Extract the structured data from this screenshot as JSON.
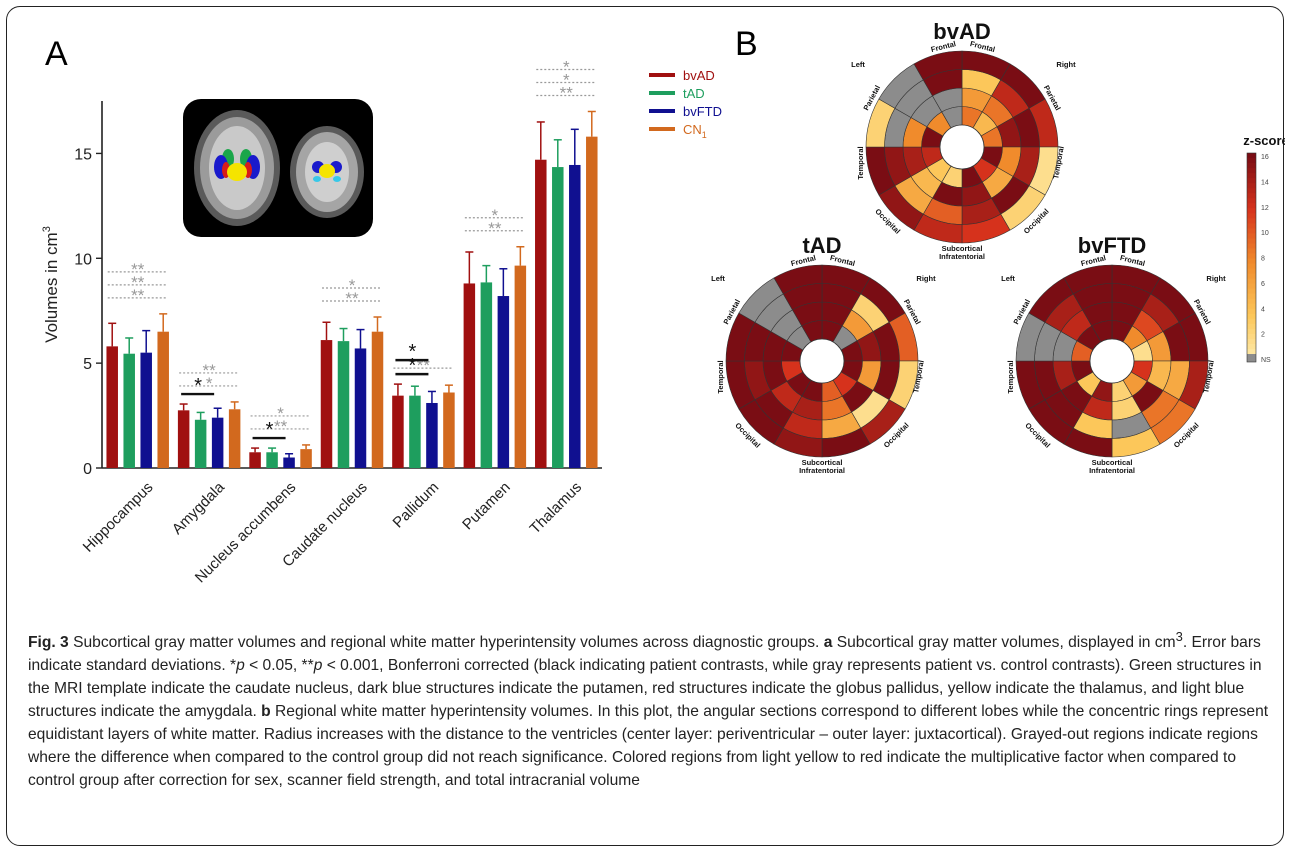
{
  "panel_a": {
    "letter": "A",
    "ylabel": "Volumes in cm",
    "ylabel_sup": "3",
    "legend": [
      {
        "label": "bvAD",
        "color": "#a01010"
      },
      {
        "label": "tAD",
        "color": "#1e9e5e"
      },
      {
        "label": "bvFTD",
        "color": "#101090"
      },
      {
        "label": "CN",
        "sub": "1",
        "color": "#d2691e"
      }
    ]
  },
  "chart_data": [
    {
      "type": "bar",
      "categories": [
        "Hippocampus",
        "Amygdala",
        "Nucleus accumbens",
        "Caudate nucleus",
        "Pallidum",
        "Putamen",
        "Thalamus"
      ],
      "series": [
        {
          "name": "bvAD",
          "color": "#a01010",
          "values": [
            5.8,
            2.75,
            0.75,
            6.1,
            3.45,
            8.8,
            14.7
          ],
          "errors": [
            1.1,
            0.3,
            0.2,
            0.85,
            0.55,
            1.5,
            1.8
          ]
        },
        {
          "name": "tAD",
          "color": "#1e9e5e",
          "values": [
            5.45,
            2.3,
            0.75,
            6.05,
            3.45,
            8.85,
            14.35
          ],
          "errors": [
            0.75,
            0.35,
            0.2,
            0.6,
            0.45,
            0.8,
            1.3
          ]
        },
        {
          "name": "bvFTD",
          "color": "#101090",
          "values": [
            5.5,
            2.4,
            0.5,
            5.7,
            3.1,
            8.2,
            14.45
          ],
          "errors": [
            1.05,
            0.45,
            0.18,
            0.9,
            0.55,
            1.3,
            1.7
          ]
        },
        {
          "name": "CN1",
          "color": "#d2691e",
          "values": [
            6.5,
            2.8,
            0.9,
            6.5,
            3.6,
            9.65,
            15.8
          ],
          "errors": [
            0.85,
            0.35,
            0.2,
            0.7,
            0.35,
            0.9,
            1.2
          ]
        }
      ],
      "xlabel": "",
      "ylabel": "Volumes in cm3",
      "ylim": [
        0,
        17.5
      ],
      "yticks": [
        0,
        5,
        10,
        15
      ],
      "error_bars": "standard deviation",
      "grid": false,
      "legend": "top-right",
      "significance": [
        {
          "category": "Hippocampus",
          "marks": [
            "**",
            "**",
            "**"
          ],
          "color": "gray"
        },
        {
          "category": "Amygdala",
          "marks": [
            "**",
            "*"
          ],
          "color": "gray"
        },
        {
          "category": "Amygdala",
          "marks": [
            "*"
          ],
          "color": "black"
        },
        {
          "category": "Nucleus accumbens",
          "marks": [
            "*",
            "**"
          ],
          "color": "gray"
        },
        {
          "category": "Nucleus accumbens",
          "marks": [
            "*"
          ],
          "color": "black"
        },
        {
          "category": "Caudate nucleus",
          "marks": [
            "*",
            "**"
          ],
          "color": "gray"
        },
        {
          "category": "Pallidum",
          "marks": [
            "**"
          ],
          "color": "gray"
        },
        {
          "category": "Pallidum",
          "marks": [
            "*",
            "*"
          ],
          "color": "black"
        },
        {
          "category": "Putamen",
          "marks": [
            "*",
            "**"
          ],
          "color": "gray"
        },
        {
          "category": "Thalamus",
          "marks": [
            "*",
            "*",
            "**"
          ],
          "color": "gray"
        }
      ]
    },
    {
      "type": "heatmap",
      "layout": "polar bullseye",
      "panels": [
        "bvAD",
        "tAD",
        "bvFTD"
      ],
      "colorbar": {
        "title": "z-score",
        "ticks": [
          "16",
          "14",
          "12",
          "10",
          "8",
          "6",
          "4",
          "2",
          "NS"
        ],
        "range": [
          0,
          16
        ]
      }
    }
  ],
  "panel_b": {
    "letter": "B",
    "colorbar_title": "z-score",
    "colorbar_ticks": [
      "16",
      "14",
      "12",
      "10",
      "8",
      "6",
      "4",
      "2",
      "NS"
    ],
    "ns_color": "#8c8c8c",
    "lobe_labels": {
      "left": "Left",
      "right": "Right",
      "frontal": "Frontal",
      "parietal": "Parietal",
      "temporal": "Temporal",
      "occipital": "Occipital",
      "subcortical": "Subcortical",
      "infratentorial": "Infratentorial"
    },
    "plots": [
      {
        "title": "bvAD",
        "rings": [
          [
            9,
            5,
            9,
            16,
            12,
            16,
            3,
            4,
            13,
            16,
            8,
            0
          ],
          [
            7,
            9,
            15,
            8,
            6,
            15,
            16,
            5,
            14,
            8,
            0,
            0
          ],
          [
            4,
            13,
            16,
            14,
            16,
            14,
            10,
            6,
            15,
            0,
            0,
            16
          ],
          [
            16,
            16,
            13,
            2,
            3,
            12,
            13,
            15,
            16,
            3,
            0,
            16
          ]
        ]
      },
      {
        "title": "tAD",
        "rings": [
          [
            16,
            0,
            16,
            16,
            12,
            10,
            16,
            16,
            12,
            16,
            0,
            16
          ],
          [
            16,
            7,
            15,
            7,
            16,
            9,
            14,
            13,
            16,
            16,
            0,
            16
          ],
          [
            16,
            3,
            16,
            16,
            2,
            6,
            13,
            16,
            15,
            16,
            0,
            16
          ],
          [
            16,
            16,
            10,
            3,
            14,
            16,
            15,
            16,
            16,
            16,
            0,
            16
          ]
        ]
      },
      {
        "title": "bvFTD",
        "rings": [
          [
            16,
            8,
            2,
            12,
            7,
            3,
            15,
            4,
            16,
            10,
            16,
            16
          ],
          [
            16,
            11,
            7,
            5,
            16,
            3,
            13,
            16,
            14,
            0,
            13,
            16
          ],
          [
            16,
            14,
            16,
            6,
            9,
            0,
            4,
            16,
            16,
            0,
            14,
            16
          ],
          [
            16,
            16,
            16,
            14,
            9,
            4,
            16,
            16,
            16,
            0,
            16,
            16
          ]
        ]
      }
    ]
  },
  "caption": {
    "fig_label": "Fig. 3",
    "title": "Subcortical gray matter volumes and regional white matter hyperintensity volumes across diagnostic groups.",
    "a_label": "a",
    "a_text_1": "Subcortical gray matter volumes, displayed in cm",
    "a_sup": "3",
    "a_text_2": ". Error bars indicate standard deviations. *",
    "p1": "p",
    "a_text_3": " < 0.05, **",
    "p2": "p",
    "a_text_4": " < 0.001, Bonferroni corrected (black indicating patient contrasts, while gray represents patient vs. control contrasts). Green structures in the MRI template indicate the caudate nucleus, dark blue structures indicate the putamen, red structures indicate the globus pallidus, yellow indicate the thalamus, and light blue structures indicate the amygdala.",
    "b_label": "b",
    "b_text": "Regional white matter hyperintensity volumes. In this plot, the angular sections correspond to different lobes while the concentric rings represent equidistant layers of white matter. Radius increases with the distance to the ventricles (center layer: periventricular – outer layer: juxtacortical). Grayed-out regions indicate regions where the difference when compared to the control group did not reach significance. Colored regions from light yellow to red indicate the multiplicative factor when compared to control group after correction for sex, scanner field strength, and total intracranial volume"
  }
}
